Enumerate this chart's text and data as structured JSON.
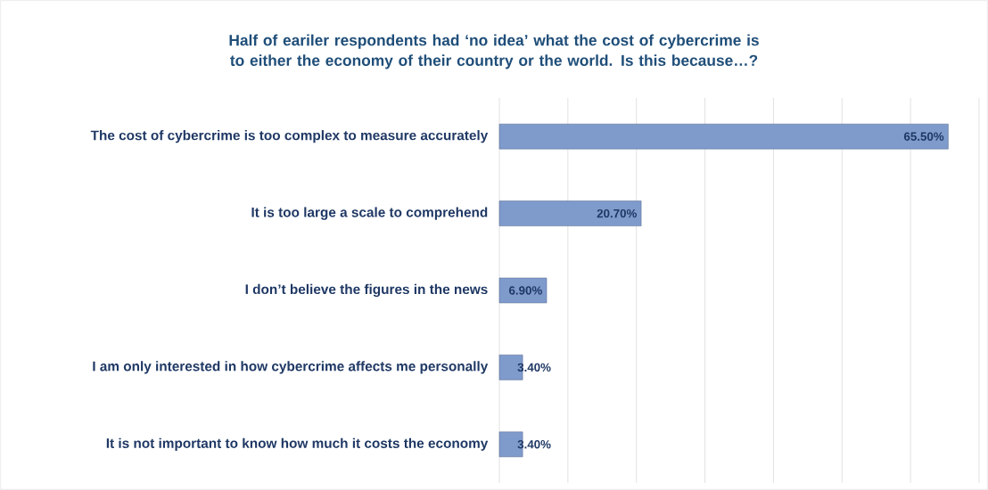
{
  "chart_data": {
    "type": "bar",
    "orientation": "horizontal",
    "title": "Half of eariler respondents had ‘no idea’ what the cost of cybercrime is to either the economy of their country or the world. Is this because…?",
    "categories": [
      "The cost of cybercrime is too complex to measure accurately",
      "It is too large a scale to comprehend",
      "I don’t believe the figures in the news",
      "I am only interested in how cybercrime affects me personally",
      "It is not important to know how much it costs the economy"
    ],
    "values": [
      65.5,
      20.7,
      6.9,
      3.4,
      3.4
    ],
    "value_labels": [
      "65.50%",
      "20.70%",
      "6.90%",
      "3.40%",
      "3.40%"
    ],
    "color": "#7f9bcc",
    "xlim": [
      0,
      70
    ],
    "xticks": [
      {
        "value": 0,
        "label": null
      },
      {
        "value": 10,
        "label": null
      },
      {
        "value": 20,
        "label": null
      },
      {
        "value": 30,
        "label": null
      },
      {
        "value": 40,
        "label": null
      },
      {
        "value": 50,
        "label": null
      },
      {
        "value": 60,
        "label": null
      },
      {
        "value": 70,
        "label": null
      }
    ],
    "grid": "x"
  }
}
